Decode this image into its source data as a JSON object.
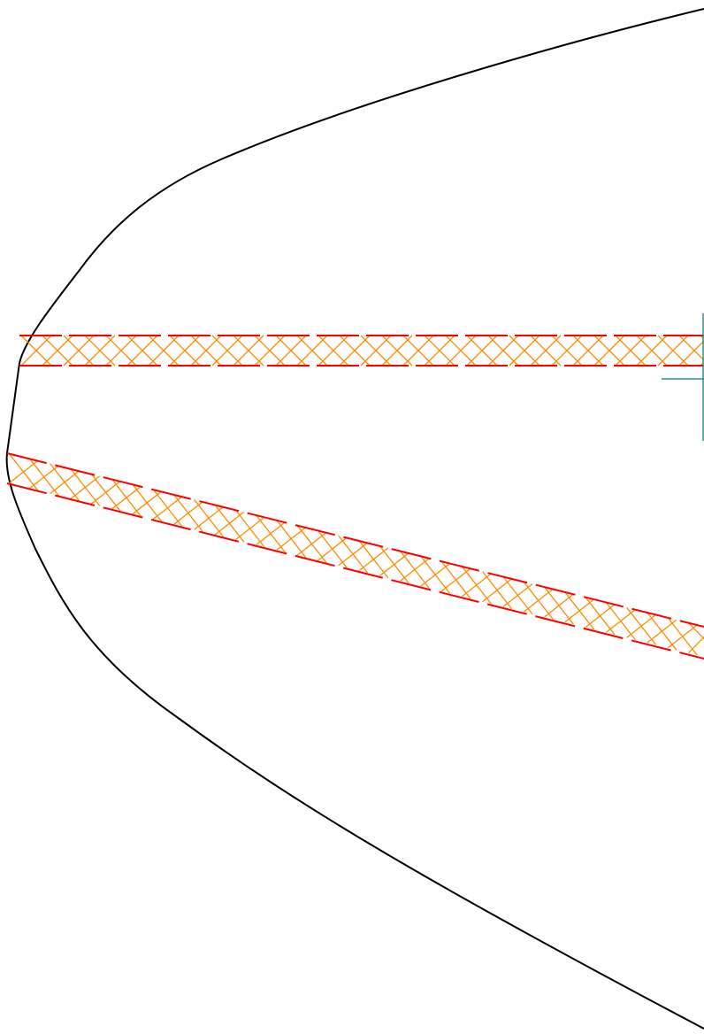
{
  "diagram": {
    "colors": {
      "background": "#ffffff",
      "boundary": "#000000",
      "band_edge": "#ff0000",
      "band_hatch": "#ff8c00",
      "marker": "#2f8f8f"
    },
    "elements": {
      "outline": "boundary-curve",
      "upper_band": "horizontal-hatched-band",
      "lower_band": "sloped-hatched-band",
      "marker": "teal-cross-marker"
    }
  }
}
